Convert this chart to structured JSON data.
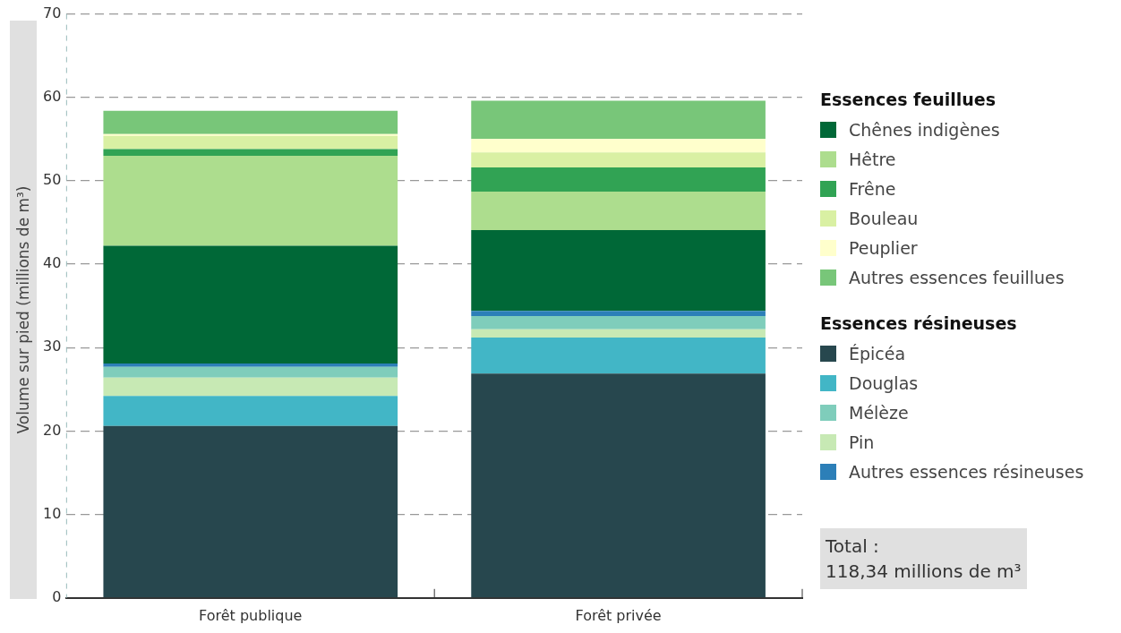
{
  "chart_data": {
    "type": "bar",
    "stacked": true,
    "ylabel": "Volume sur pied (millions de m³)",
    "categories": [
      "Forêt publique",
      "Forêt privée"
    ],
    "series": [
      {
        "name": "Épicéa",
        "color": "#27474e",
        "values": [
          20.6,
          26.9
        ]
      },
      {
        "name": "Douglas",
        "color": "#42b6c6",
        "values": [
          3.6,
          4.3
        ]
      },
      {
        "name": "Pin",
        "color": "#c7e9b4",
        "values": [
          2.2,
          1.0
        ]
      },
      {
        "name": "Mélèze",
        "color": "#7fcdbb",
        "values": [
          1.3,
          1.6
        ]
      },
      {
        "name": "Autres essences résineuses",
        "color": "#2c7fb8",
        "values": [
          0.4,
          0.6
        ]
      },
      {
        "name": "Chênes indigènes",
        "color": "#006837",
        "values": [
          14.1,
          9.7
        ]
      },
      {
        "name": "Hêtre",
        "color": "#addd8e",
        "values": [
          10.8,
          4.6
        ]
      },
      {
        "name": "Frêne",
        "color": "#31a354",
        "values": [
          0.8,
          2.9
        ]
      },
      {
        "name": "Bouleau",
        "color": "#d9f0a3",
        "values": [
          1.6,
          1.8
        ]
      },
      {
        "name": "Peuplier",
        "color": "#ffffcc",
        "values": [
          0.2,
          1.6
        ]
      },
      {
        "name": "Autres essences feuillues",
        "color": "#78c679",
        "values": [
          2.8,
          4.6
        ]
      }
    ],
    "ylim": [
      0,
      70
    ],
    "yticks": [
      0,
      10,
      20,
      30,
      40,
      50,
      60,
      70
    ],
    "grid": "y",
    "legend": "right",
    "annotations": [
      "Essences feuillues",
      "Essences résineuses",
      "Total :\n118,34 millions de m³"
    ]
  }
}
